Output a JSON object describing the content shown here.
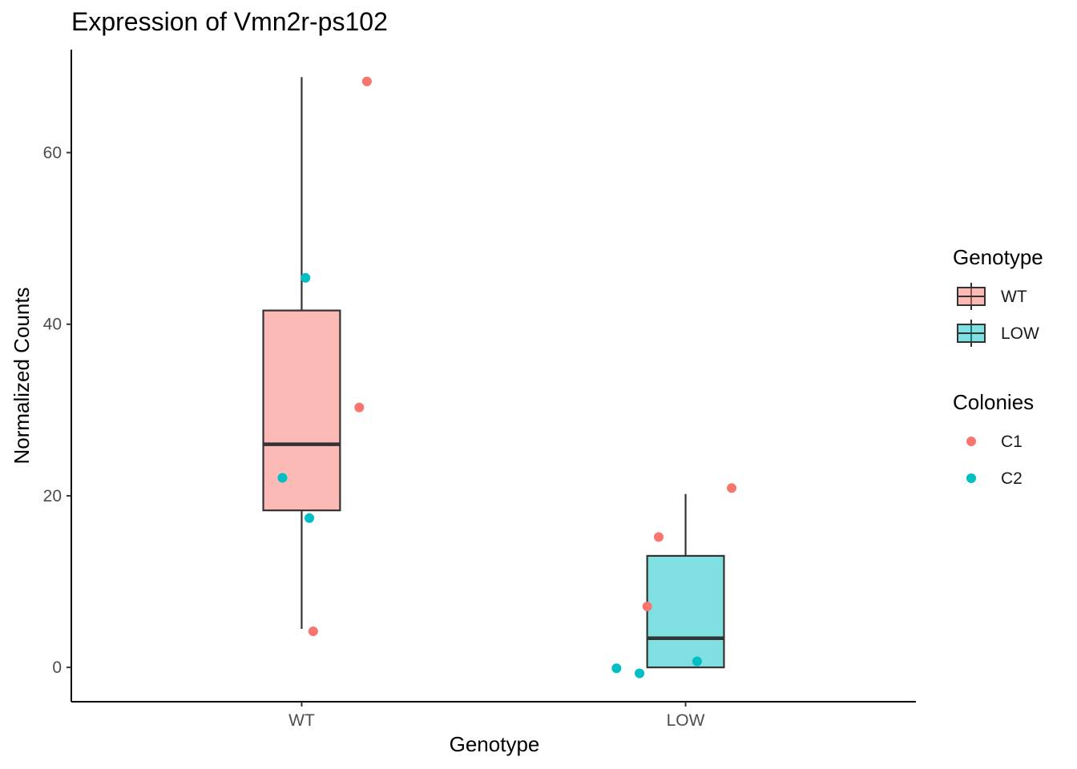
{
  "chart_data": {
    "type": "box",
    "title": "Expression of Vmn2r-ps102",
    "xlabel": "Genotype",
    "ylabel": "Normalized Counts",
    "ylim": [
      -4,
      72
    ],
    "yticks": [
      0,
      20,
      40,
      60
    ],
    "categories": [
      "WT",
      "LOW"
    ],
    "grid": false,
    "boxes": [
      {
        "category": "WT",
        "whisker_low": 4.5,
        "q1": 18.3,
        "median": 26.0,
        "q3": 41.6,
        "whisker_high": 68.8,
        "fill": "#F8766D"
      },
      {
        "category": "LOW",
        "whisker_low": 0.0,
        "q1": 0.0,
        "median": 3.4,
        "q3": 13.0,
        "whisker_high": 20.2,
        "fill": "#00BFC4"
      }
    ],
    "points": [
      {
        "category": "WT",
        "colony": "C1",
        "x_offset": 0.17,
        "y": 68.3
      },
      {
        "category": "WT",
        "colony": "C2",
        "x_offset": 0.01,
        "y": 45.4
      },
      {
        "category": "WT",
        "colony": "C1",
        "x_offset": 0.15,
        "y": 30.3
      },
      {
        "category": "WT",
        "colony": "C2",
        "x_offset": -0.05,
        "y": 22.1
      },
      {
        "category": "WT",
        "colony": "C2",
        "x_offset": 0.02,
        "y": 17.4
      },
      {
        "category": "WT",
        "colony": "C1",
        "x_offset": 0.03,
        "y": 4.2
      },
      {
        "category": "LOW",
        "colony": "C1",
        "x_offset": 0.12,
        "y": 20.9
      },
      {
        "category": "LOW",
        "colony": "C1",
        "x_offset": -0.07,
        "y": 15.2
      },
      {
        "category": "LOW",
        "colony": "C1",
        "x_offset": -0.1,
        "y": 7.1
      },
      {
        "category": "LOW",
        "colony": "C2",
        "x_offset": 0.03,
        "y": 0.7
      },
      {
        "category": "LOW",
        "colony": "C2",
        "x_offset": -0.18,
        "y": -0.1
      },
      {
        "category": "LOW",
        "colony": "C2",
        "x_offset": -0.12,
        "y": -0.7
      }
    ],
    "legends": [
      {
        "title": "Genotype",
        "type": "box",
        "entries": [
          {
            "label": "WT",
            "color": "#F8766D"
          },
          {
            "label": "LOW",
            "color": "#00BFC4"
          }
        ]
      },
      {
        "title": "Colonies",
        "type": "point",
        "entries": [
          {
            "label": "C1",
            "color": "#F8766D"
          },
          {
            "label": "C2",
            "color": "#00BFC4"
          }
        ]
      }
    ],
    "legend_position": "right",
    "colors": {
      "C1": "#F8766D",
      "C2": "#00BFC4"
    }
  }
}
